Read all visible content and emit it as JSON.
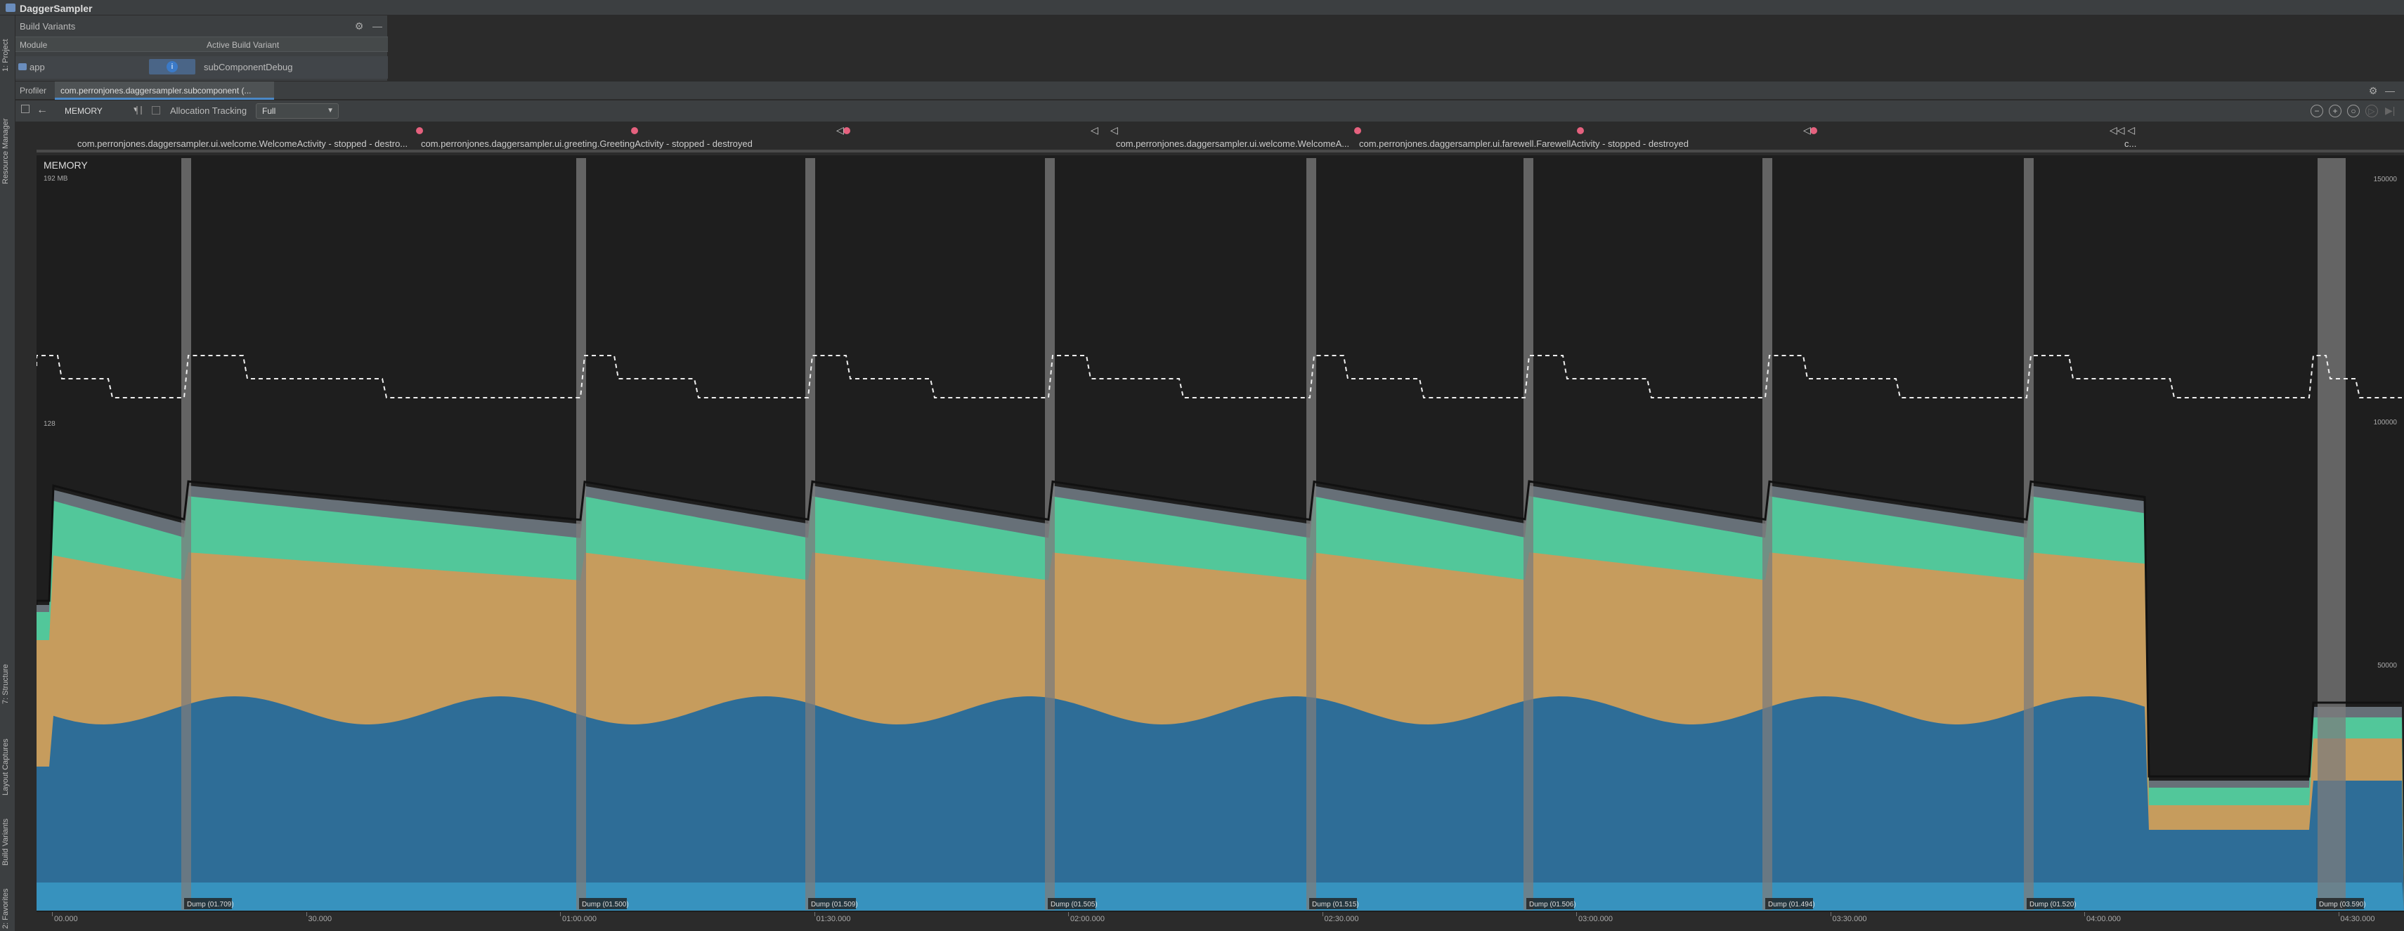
{
  "window": {
    "title": "DaggerSampler"
  },
  "left_tool_tabs": [
    "1: Project",
    "Resource Manager",
    "7: Structure",
    "Layout Captures",
    "Build Variants",
    "2: Favorites"
  ],
  "build_variants": {
    "title": "Build Variants",
    "columns": [
      "Module",
      "Active Build Variant"
    ],
    "rows": [
      {
        "module": "app",
        "variant": "subComponentDebug"
      }
    ]
  },
  "profiler": {
    "tab_label": "Profiler",
    "session_tab": "com.perronjones.daggersampler.subcomponent (...",
    "toolbar": {
      "back_icon": "back-arrow-icon",
      "view_selector": "MEMORY",
      "allocation_tracking_label": "Allocation Tracking",
      "allocation_tracking_value": "Full"
    },
    "activities": [
      "com.perronjones.daggersampler.ui.welcome.WelcomeActivity - stopped - destro...",
      "com.perronjones.daggersampler.ui.greeting.GreetingActivity - stopped - destroyed",
      "com.perronjones.daggersampler.ui.welcome.WelcomeA...",
      "com.perronjones.daggersampler.ui.farewell.FarewellActivity - stopped - destroyed",
      "c..."
    ],
    "chart_title": "MEMORY",
    "left_axis_top": "192 MB",
    "left_axis_mid": "128",
    "right_axis": [
      "150000",
      "100000",
      "50000"
    ],
    "heap_dumps": [
      "Dump (01.709)",
      "Dump (01.500)",
      "Dump (01.509)",
      "Dump (01.505)",
      "Dump (01.515)",
      "Dump (01.506)",
      "Dump (01.494)",
      "Dump (01.520)",
      "Dump (03.590)"
    ],
    "time_ticks": [
      "00.000",
      "30.000",
      "01:00.000",
      "01:30.000",
      "02:00.000",
      "02:30.000",
      "03:00.000",
      "03:30.000",
      "04:00.000",
      "04:30.000"
    ]
  },
  "colors": {
    "java": "#c69c5d",
    "native": "#2e6d97",
    "graphics": "#3792be",
    "code": "#52c79a",
    "other": "#677078",
    "gc_bar": "#7c7c7c"
  }
}
